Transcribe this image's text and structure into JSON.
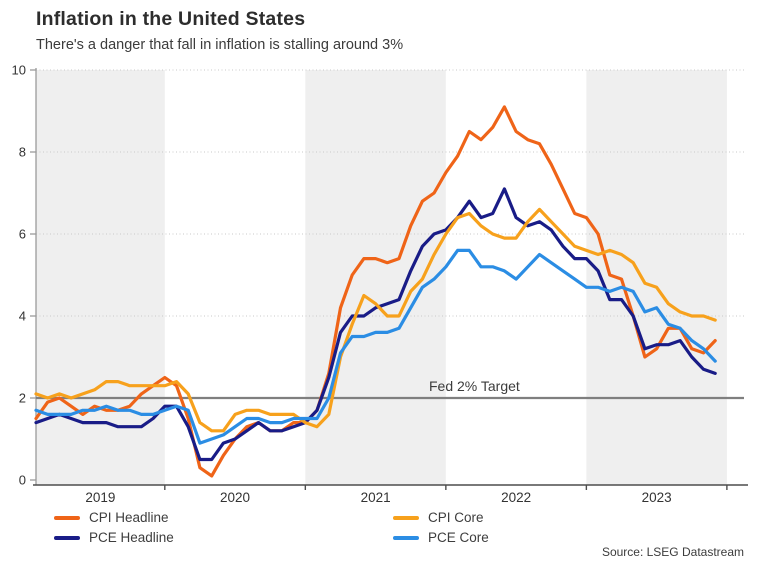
{
  "header": {
    "title": "Inflation in the United States",
    "subtitle": "There's a danger that fall in inflation is stalling around 3%"
  },
  "source": "Source: LSEG Datastream",
  "colors": {
    "cpi_headline": "#ef6418",
    "pce_headline": "#191c87",
    "cpi_core": "#f7a11c",
    "pce_core": "#2b8de4",
    "target_line": "#7f7f7f",
    "year_band": "#efefef",
    "gridline": "#c9c9c9",
    "x_axis": "#4d4d4d",
    "y_axis": "#9b9b9b",
    "axis_text": "#333333"
  },
  "chart_data": {
    "type": "line",
    "title": "Inflation in the United States",
    "subtitle": "There's a danger that fall in inflation is stalling around 3%",
    "x_start": "2019-02",
    "x_end": "2023-12",
    "frequency": "monthly",
    "x_tick_labels": [
      "2019",
      "2020",
      "2021",
      "2022",
      "2023"
    ],
    "shaded_years": [
      2019,
      2021,
      2023
    ],
    "ylim": [
      0,
      10
    ],
    "y_ticks": [
      0,
      2,
      4,
      6,
      8,
      10
    ],
    "grid": "dotted horizontal at 2,4,6,8,10",
    "legend_position": "bottom",
    "annotations": [
      {
        "label": "Fed 2% Target",
        "y": 2
      }
    ],
    "series": [
      {
        "name": "CPI Headline",
        "color": "#ef6418",
        "values": [
          1.5,
          1.9,
          2.0,
          1.8,
          1.6,
          1.8,
          1.7,
          1.7,
          1.8,
          2.1,
          2.3,
          2.5,
          2.3,
          1.5,
          0.3,
          0.1,
          0.6,
          1.0,
          1.3,
          1.4,
          1.2,
          1.2,
          1.4,
          1.4,
          1.7,
          2.6,
          4.2,
          5.0,
          5.4,
          5.4,
          5.3,
          5.4,
          6.2,
          6.8,
          7.0,
          7.5,
          7.9,
          8.5,
          8.3,
          8.6,
          9.1,
          8.5,
          8.3,
          8.2,
          7.7,
          7.1,
          6.5,
          6.4,
          6.0,
          5.0,
          4.9,
          4.0,
          3.0,
          3.2,
          3.7,
          3.7,
          3.2,
          3.1,
          3.4
        ]
      },
      {
        "name": "PCE Headline",
        "color": "#191c87",
        "values": [
          1.4,
          1.5,
          1.6,
          1.5,
          1.4,
          1.4,
          1.4,
          1.3,
          1.3,
          1.3,
          1.5,
          1.8,
          1.8,
          1.3,
          0.5,
          0.5,
          0.9,
          1.0,
          1.2,
          1.4,
          1.2,
          1.2,
          1.3,
          1.4,
          1.7,
          2.5,
          3.6,
          4.0,
          4.0,
          4.2,
          4.3,
          4.4,
          5.1,
          5.7,
          6.0,
          6.1,
          6.4,
          6.8,
          6.4,
          6.5,
          7.1,
          6.4,
          6.2,
          6.3,
          6.1,
          5.7,
          5.4,
          5.4,
          5.1,
          4.4,
          4.4,
          4.0,
          3.2,
          3.3,
          3.3,
          3.4,
          3.0,
          2.7,
          2.6
        ]
      },
      {
        "name": "CPI Core",
        "color": "#f7a11c",
        "values": [
          2.1,
          2.0,
          2.1,
          2.0,
          2.1,
          2.2,
          2.4,
          2.4,
          2.3,
          2.3,
          2.3,
          2.3,
          2.4,
          2.1,
          1.4,
          1.2,
          1.2,
          1.6,
          1.7,
          1.7,
          1.6,
          1.6,
          1.6,
          1.4,
          1.3,
          1.6,
          3.0,
          3.8,
          4.5,
          4.3,
          4.0,
          4.0,
          4.6,
          4.9,
          5.5,
          6.0,
          6.4,
          6.5,
          6.2,
          6.0,
          5.9,
          5.9,
          6.3,
          6.6,
          6.3,
          6.0,
          5.7,
          5.6,
          5.5,
          5.6,
          5.5,
          5.3,
          4.8,
          4.7,
          4.3,
          4.1,
          4.0,
          4.0,
          3.9
        ]
      },
      {
        "name": "PCE Core",
        "color": "#2b8de4",
        "values": [
          1.7,
          1.6,
          1.6,
          1.6,
          1.7,
          1.7,
          1.8,
          1.7,
          1.7,
          1.6,
          1.6,
          1.7,
          1.8,
          1.7,
          0.9,
          1.0,
          1.1,
          1.3,
          1.5,
          1.5,
          1.4,
          1.4,
          1.5,
          1.5,
          1.5,
          2.0,
          3.1,
          3.5,
          3.5,
          3.6,
          3.6,
          3.7,
          4.2,
          4.7,
          4.9,
          5.2,
          5.6,
          5.6,
          5.2,
          5.2,
          5.1,
          4.9,
          5.2,
          5.5,
          5.3,
          5.1,
          4.9,
          4.7,
          4.7,
          4.6,
          4.7,
          4.6,
          4.1,
          4.2,
          3.8,
          3.7,
          3.4,
          3.2,
          2.9
        ]
      }
    ]
  }
}
